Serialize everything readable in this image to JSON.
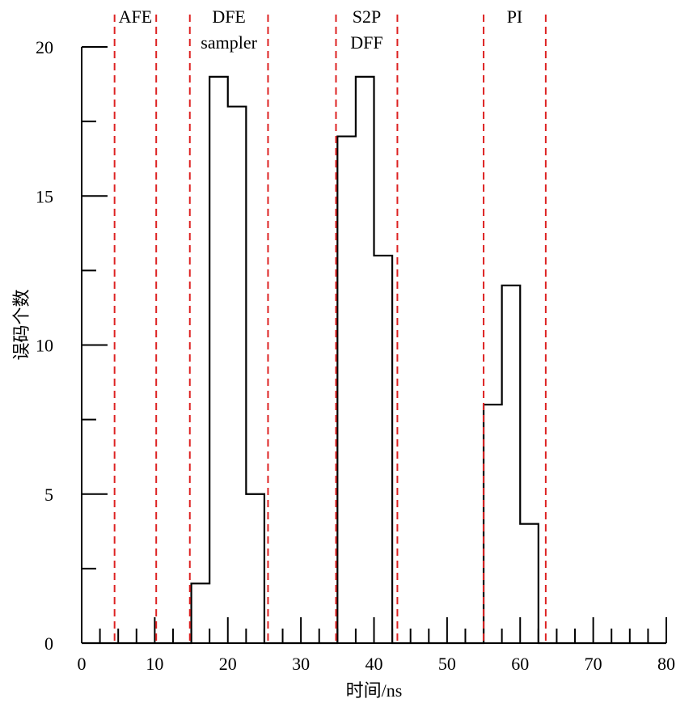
{
  "chart_data": {
    "type": "line",
    "step": true,
    "title": "",
    "xlabel": "时间/ns",
    "ylabel": "误码个数",
    "xlim": [
      0,
      80
    ],
    "ylim": [
      0,
      20
    ],
    "x_ticks": [
      0,
      10,
      20,
      30,
      40,
      50,
      60,
      70,
      80
    ],
    "y_ticks": [
      0,
      5,
      10,
      15,
      20
    ],
    "x_minor_step": 2.5,
    "y_minor_step": 2.5,
    "grid": false,
    "series": [
      {
        "color": "#000000",
        "x": [
          0,
          2.5,
          5,
          7.5,
          10,
          12.5,
          15,
          17.5,
          20,
          22.5,
          25,
          27.5,
          30,
          32.5,
          35,
          37.5,
          40,
          42.5,
          45,
          47.5,
          50,
          52.5,
          55,
          57.5,
          60,
          62.5,
          65,
          67.5,
          70,
          72.5,
          75,
          77.5,
          80
        ],
        "values": [
          0,
          0,
          0,
          0,
          0,
          0,
          2,
          19,
          18,
          5,
          0,
          0,
          0,
          0,
          17,
          19,
          13,
          0,
          0,
          0,
          0,
          0,
          8,
          12,
          4,
          0,
          0,
          0,
          0,
          0,
          0,
          0,
          0
        ]
      }
    ],
    "regions": [
      {
        "label_lines": [
          "AFE"
        ],
        "x_start": 4.5,
        "x_end": 10.2
      },
      {
        "label_lines": [
          "DFE",
          "sampler"
        ],
        "x_start": 14.8,
        "x_end": 25.5
      },
      {
        "label_lines": [
          "S2P",
          "DFF"
        ],
        "x_start": 34.8,
        "x_end": 43.2
      },
      {
        "label_lines": [
          "PI"
        ],
        "x_start": 55.0,
        "x_end": 63.5
      }
    ],
    "boundary_color": "#dd2222"
  }
}
